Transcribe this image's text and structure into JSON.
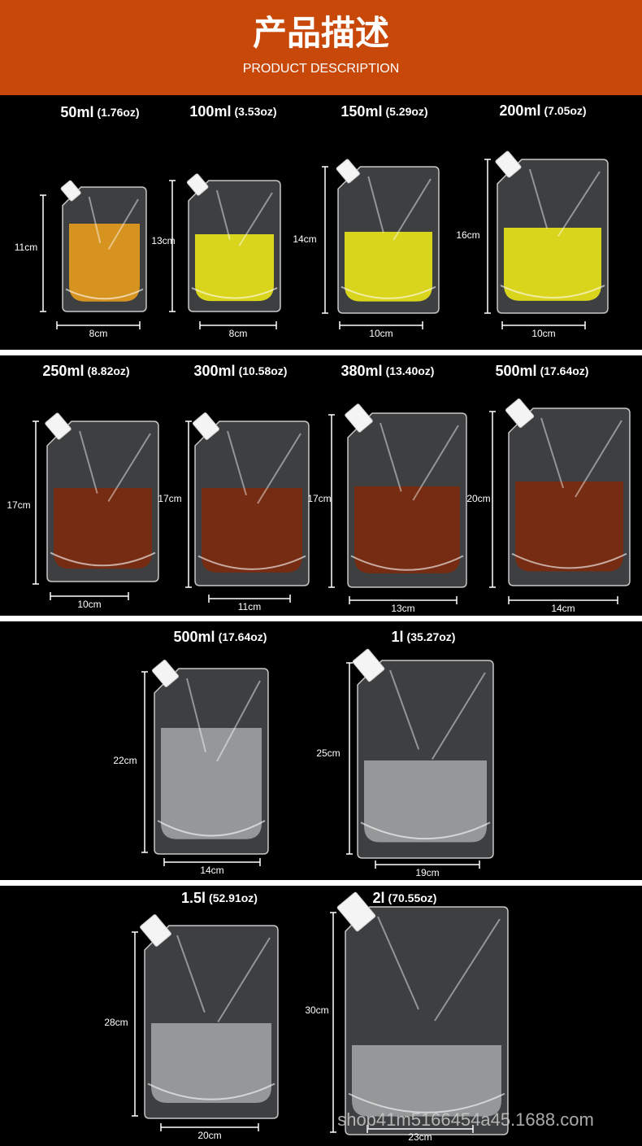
{
  "header": {
    "title": "产品描述",
    "subtitle": "PRODUCT DESCRIPTION"
  },
  "rows": [
    {
      "items": [
        {
          "capacity": "50ml",
          "ounces": "(1.76oz)",
          "height": "11cm",
          "width": "8cm"
        },
        {
          "capacity": "100ml",
          "ounces": "(3.53oz)",
          "height": "13cm",
          "width": "8cm"
        },
        {
          "capacity": "150ml",
          "ounces": "(5.29oz)",
          "height": "14cm",
          "width": "10cm"
        },
        {
          "capacity": "200ml",
          "ounces": "(7.05oz)",
          "height": "16cm",
          "width": "10cm"
        }
      ]
    },
    {
      "items": [
        {
          "capacity": "250ml",
          "ounces": "(8.82oz)",
          "height": "17cm",
          "width": "10cm"
        },
        {
          "capacity": "300ml",
          "ounces": "(10.58oz)",
          "height": "17cm",
          "width": "11cm"
        },
        {
          "capacity": "380ml",
          "ounces": "(13.40oz)",
          "height": "17cm",
          "width": "13cm"
        },
        {
          "capacity": "500ml",
          "ounces": "(17.64oz)",
          "height": "20cm",
          "width": "14cm"
        }
      ]
    },
    {
      "items": [
        {
          "capacity": "500ml",
          "ounces": "(17.64oz)",
          "height": "22cm",
          "width": "14cm"
        },
        {
          "capacity": "1l",
          "ounces": "(35.27oz)",
          "height": "25cm",
          "width": "19cm"
        }
      ]
    },
    {
      "items": [
        {
          "capacity": "1.5l",
          "ounces": "(52.91oz)",
          "height": "28cm",
          "width": "20cm"
        },
        {
          "capacity": "2l",
          "ounces": "(70.55oz)",
          "height": "30cm",
          "width": "23cm"
        }
      ]
    }
  ],
  "watermark": "shop41m5166454a45.1688.com"
}
